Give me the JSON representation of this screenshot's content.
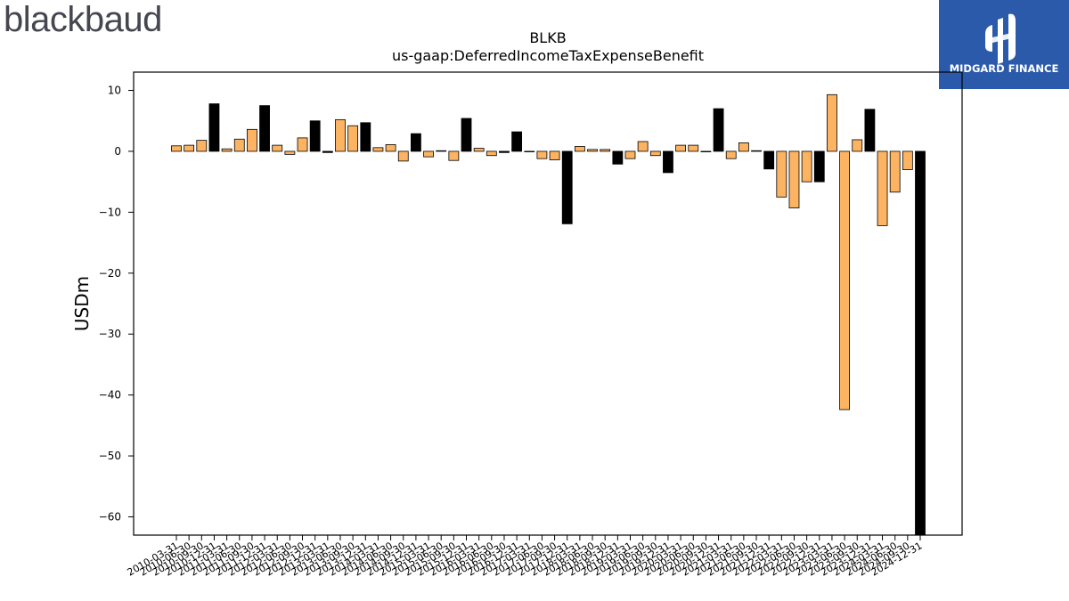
{
  "brand": {
    "name": "blackbaud",
    "color": "#45464f"
  },
  "watermark": {
    "text": "MIDGARD FINANCE",
    "bg_color": "#2b5aab"
  },
  "chart_data": {
    "type": "bar",
    "title": "BLKB",
    "subtitle": "us-gaap:DeferredIncomeTaxExpenseBenefit",
    "ylabel": "USDm",
    "xlabel": "",
    "ylim": [
      -63,
      13
    ],
    "yticks": [
      10,
      0,
      -10,
      -20,
      -30,
      -40,
      -50,
      -60
    ],
    "grid": false,
    "colors": {
      "quarterly": "#fdb462",
      "annual": "#000000",
      "edge": "#000000"
    },
    "categories": [
      "2010-03-31",
      "2010-06-30",
      "2010-09-30",
      "2010-12-31",
      "2011-03-31",
      "2011-06-30",
      "2011-09-30",
      "2011-12-31",
      "2012-03-31",
      "2012-06-30",
      "2012-09-30",
      "2012-12-31",
      "2013-03-31",
      "2013-06-30",
      "2013-09-30",
      "2013-12-31",
      "2014-03-31",
      "2014-06-30",
      "2014-09-30",
      "2014-12-31",
      "2015-03-31",
      "2015-06-30",
      "2015-09-30",
      "2015-12-31",
      "2016-03-31",
      "2016-06-30",
      "2016-09-30",
      "2016-12-31",
      "2017-03-31",
      "2017-06-30",
      "2017-09-30",
      "2017-12-31",
      "2018-03-31",
      "2018-06-30",
      "2018-09-30",
      "2018-12-31",
      "2019-03-31",
      "2019-06-30",
      "2019-09-30",
      "2019-12-31",
      "2020-03-31",
      "2020-06-30",
      "2020-09-30",
      "2020-12-31",
      "2021-03-31",
      "2021-06-30",
      "2021-09-30",
      "2021-12-31",
      "2022-03-31",
      "2022-06-30",
      "2022-09-30",
      "2022-12-31",
      "2023-03-31",
      "2023-06-30",
      "2023-09-30",
      "2023-12-31",
      "2024-03-31",
      "2024-06-30",
      "2024-09-30",
      "2024-12-31"
    ],
    "values": [
      0.9,
      1.0,
      1.8,
      7.8,
      0.4,
      2.0,
      3.6,
      7.5,
      1.0,
      -0.5,
      2.2,
      5.0,
      -0.2,
      5.2,
      4.2,
      4.7,
      0.6,
      1.1,
      -1.6,
      2.9,
      -0.9,
      0.1,
      -1.5,
      5.4,
      0.5,
      -0.7,
      -0.2,
      3.2,
      0.0,
      -1.2,
      -1.4,
      -11.9,
      0.8,
      0.3,
      0.3,
      -2.1,
      -1.2,
      1.6,
      -0.7,
      -3.5,
      1.0,
      1.0,
      0.0,
      7.0,
      -1.2,
      1.4,
      0.1,
      -2.9,
      -7.5,
      -9.3,
      -5.0,
      -5.0,
      9.3,
      -42.4,
      1.9,
      6.9,
      -12.2,
      -6.7,
      -3.0,
      -63.0
    ],
    "annual_flags": [
      0,
      0,
      0,
      1,
      0,
      0,
      0,
      1,
      0,
      0,
      0,
      1,
      1,
      0,
      0,
      1,
      0,
      0,
      0,
      1,
      0,
      0,
      0,
      1,
      0,
      0,
      1,
      1,
      0,
      0,
      0,
      1,
      0,
      0,
      0,
      1,
      0,
      0,
      0,
      1,
      0,
      0,
      0,
      1,
      0,
      0,
      1,
      1,
      0,
      0,
      0,
      1,
      0,
      0,
      0,
      1,
      0,
      0,
      0,
      1
    ]
  }
}
